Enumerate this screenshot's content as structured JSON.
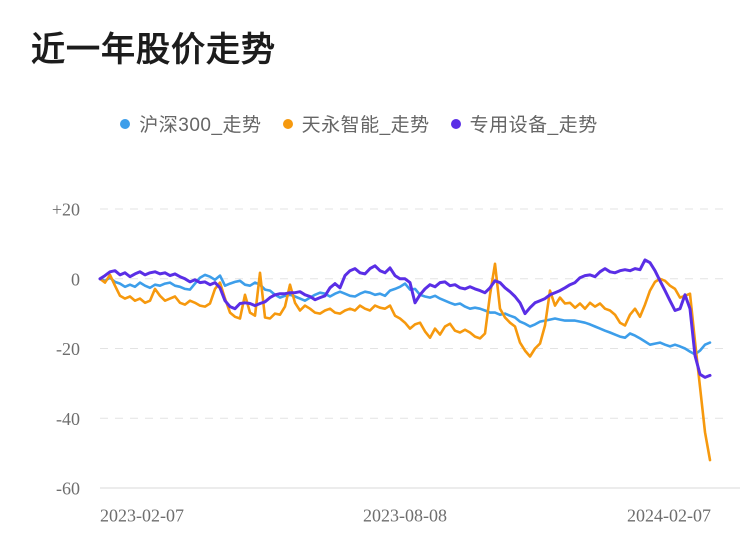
{
  "title": "近一年股价走势",
  "colors": {
    "background": "#ffffff",
    "title_text": "#1c1c1c",
    "legend_text": "#666666",
    "axis_text": "#6e6e6e",
    "gridline": "#e3e3e3",
    "baseline": "#d8d8d8",
    "series_blue": "#3d9eea",
    "series_orange": "#f6990e",
    "series_purple": "#5a2ee6"
  },
  "chart_data": {
    "type": "line",
    "title": "近一年股价走势",
    "xlabel": "",
    "ylabel": "",
    "grid": "horizontal-dashed",
    "legend_position": "top-center",
    "x_axis": {
      "ticks": [
        {
          "label": "2023-02-07",
          "pos": 0,
          "anchor": "start"
        },
        {
          "label": "2023-08-08",
          "pos": 0.5,
          "anchor": "middle"
        },
        {
          "label": "2024-02-07",
          "pos": 1,
          "anchor": "end"
        }
      ]
    },
    "y_axis": {
      "range": [
        -60,
        20
      ],
      "ticks": [
        {
          "label": "+20",
          "value": 20,
          "baseline": false
        },
        {
          "label": "0",
          "value": 0,
          "baseline": false
        },
        {
          "label": "-20",
          "value": -20,
          "baseline": false
        },
        {
          "label": "-40",
          "value": -40,
          "baseline": false
        },
        {
          "label": "-60",
          "value": -60,
          "baseline": true
        }
      ]
    },
    "series": [
      {
        "id": "csi300",
        "name": "沪深300_走势",
        "color": "#3d9eea",
        "width": 2.6,
        "values": [
          0,
          -0.6,
          0.3,
          -0.9,
          -1.4,
          -2.3,
          -1.7,
          -2.3,
          -1.1,
          -2,
          -2.6,
          -1.7,
          -2,
          -1.4,
          -1.1,
          -2,
          -2.3,
          -2.9,
          -3.1,
          -1.4,
          0.3,
          1.1,
          0.6,
          -0.3,
          0.9,
          -2,
          -1.4,
          -0.9,
          -0.6,
          -1.7,
          -2,
          -1.1,
          -1.7,
          -3.1,
          -3.4,
          -4.6,
          -5.4,
          -4.9,
          -4.6,
          -5.1,
          -5.7,
          -6.3,
          -5.4,
          -4.6,
          -4,
          -4.3,
          -5.1,
          -4.3,
          -3.7,
          -4.3,
          -4.9,
          -5.1,
          -4.3,
          -3.7,
          -4,
          -4.6,
          -4.3,
          -4.9,
          -3.4,
          -2.9,
          -2.3,
          -1.4,
          -3.1,
          -2.9,
          -4.6,
          -5.1,
          -5.4,
          -4.9,
          -5.7,
          -6.3,
          -6.9,
          -7.4,
          -7.1,
          -8,
          -8.6,
          -8.3,
          -8.6,
          -9.1,
          -9.7,
          -9.7,
          -10.3,
          -10,
          -10.6,
          -11.1,
          -12.3,
          -12.9,
          -13.7,
          -13.1,
          -12.3,
          -12,
          -11.7,
          -11.4,
          -11.7,
          -12,
          -12,
          -12,
          -12.3,
          -12.6,
          -13.1,
          -13.7,
          -14.3,
          -14.9,
          -15.4,
          -16,
          -16.6,
          -16.9,
          -15.7,
          -16.3,
          -17.1,
          -18,
          -18.9,
          -18.6,
          -18.3,
          -18.9,
          -19.4,
          -18.9,
          -19.4,
          -20,
          -20.9,
          -21.7,
          -20.6,
          -18.9,
          -18.3
        ]
      },
      {
        "id": "tianyong-intelligent",
        "name": "天永智能_走势",
        "color": "#f6990e",
        "width": 2.6,
        "values": [
          0,
          -1.1,
          1.1,
          -2,
          -4.9,
          -5.7,
          -5.1,
          -6.3,
          -5.7,
          -6.9,
          -6.3,
          -2.9,
          -4.9,
          -6.3,
          -5.7,
          -5.1,
          -6.9,
          -7.4,
          -6.3,
          -6.9,
          -7.7,
          -8,
          -7.1,
          -2.9,
          -1.1,
          -5.7,
          -9.7,
          -10.9,
          -11.4,
          -4.6,
          -9.7,
          -10.6,
          1.7,
          -11.1,
          -11.4,
          -10,
          -10.3,
          -8,
          -1.7,
          -6.9,
          -9.1,
          -7.7,
          -8.6,
          -9.7,
          -10,
          -9.1,
          -8.6,
          -9.7,
          -10,
          -9.1,
          -8.6,
          -9.1,
          -7.7,
          -8.6,
          -9.1,
          -7.7,
          -8.3,
          -8.6,
          -7.7,
          -10.6,
          -11.4,
          -12.6,
          -14.3,
          -13.1,
          -12.6,
          -15.1,
          -16.9,
          -14.3,
          -16,
          -13.7,
          -12.9,
          -14.9,
          -15.4,
          -14.6,
          -15.4,
          -16.6,
          -17.1,
          -15.7,
          -4.6,
          4.3,
          -8.6,
          -11.1,
          -12.6,
          -13.7,
          -18.3,
          -20.6,
          -22.3,
          -20,
          -18.6,
          -13.4,
          -3.4,
          -7.7,
          -5.4,
          -7.1,
          -6.9,
          -8.3,
          -7.1,
          -8.6,
          -6.9,
          -8,
          -7.1,
          -8.6,
          -9.1,
          -10.3,
          -12.6,
          -13.4,
          -10.3,
          -8.6,
          -10.9,
          -7.4,
          -3.4,
          -0.9,
          0,
          -0.6,
          -2,
          -2.9,
          -5.4,
          -4.9,
          -4.3,
          -18,
          -31,
          -44,
          -52
        ]
      },
      {
        "id": "special-equipment",
        "name": "专用设备_走势",
        "color": "#5a2ee6",
        "width": 3,
        "values": [
          0,
          0.9,
          2,
          2.3,
          1.1,
          1.7,
          0.6,
          1.4,
          2,
          1.1,
          1.7,
          2,
          1.4,
          1.7,
          0.9,
          1.4,
          0.6,
          0,
          -0.9,
          -0.3,
          -1.1,
          -0.9,
          -1.7,
          -1.1,
          -2.6,
          -6.3,
          -8,
          -8.6,
          -7.1,
          -6.9,
          -7.1,
          -7.7,
          -7.1,
          -6.6,
          -5.4,
          -4.6,
          -4.3,
          -4.3,
          -4,
          -4,
          -3.7,
          -4.6,
          -5.1,
          -6,
          -5.4,
          -4.9,
          -2.6,
          -1.4,
          -2.6,
          0.9,
          2.3,
          2.9,
          1.7,
          1.4,
          2.9,
          3.7,
          2.3,
          1.7,
          3.1,
          0.9,
          0,
          0,
          -1.1,
          -6.9,
          -4.6,
          -2.9,
          -1.7,
          -2.3,
          -1.1,
          -0.9,
          -2,
          -1.7,
          -2.6,
          -2.9,
          -2.3,
          -2.9,
          -3.4,
          -4,
          -2.6,
          -0.6,
          -1.1,
          -2.6,
          -3.7,
          -5.1,
          -6.9,
          -10,
          -8.3,
          -6.9,
          -6.3,
          -5.7,
          -4.6,
          -4,
          -3.4,
          -2.6,
          -1.7,
          -1.1,
          0.3,
          0.9,
          1.1,
          0.6,
          2,
          2.9,
          2,
          1.7,
          2.3,
          2.6,
          2.3,
          2.9,
          2.6,
          5.4,
          4.6,
          2.3,
          -0.6,
          -3.4,
          -6.3,
          -9.1,
          -8.6,
          -4.6,
          -8.6,
          -22,
          -27.4,
          -28.3,
          -27.7
        ]
      }
    ]
  }
}
